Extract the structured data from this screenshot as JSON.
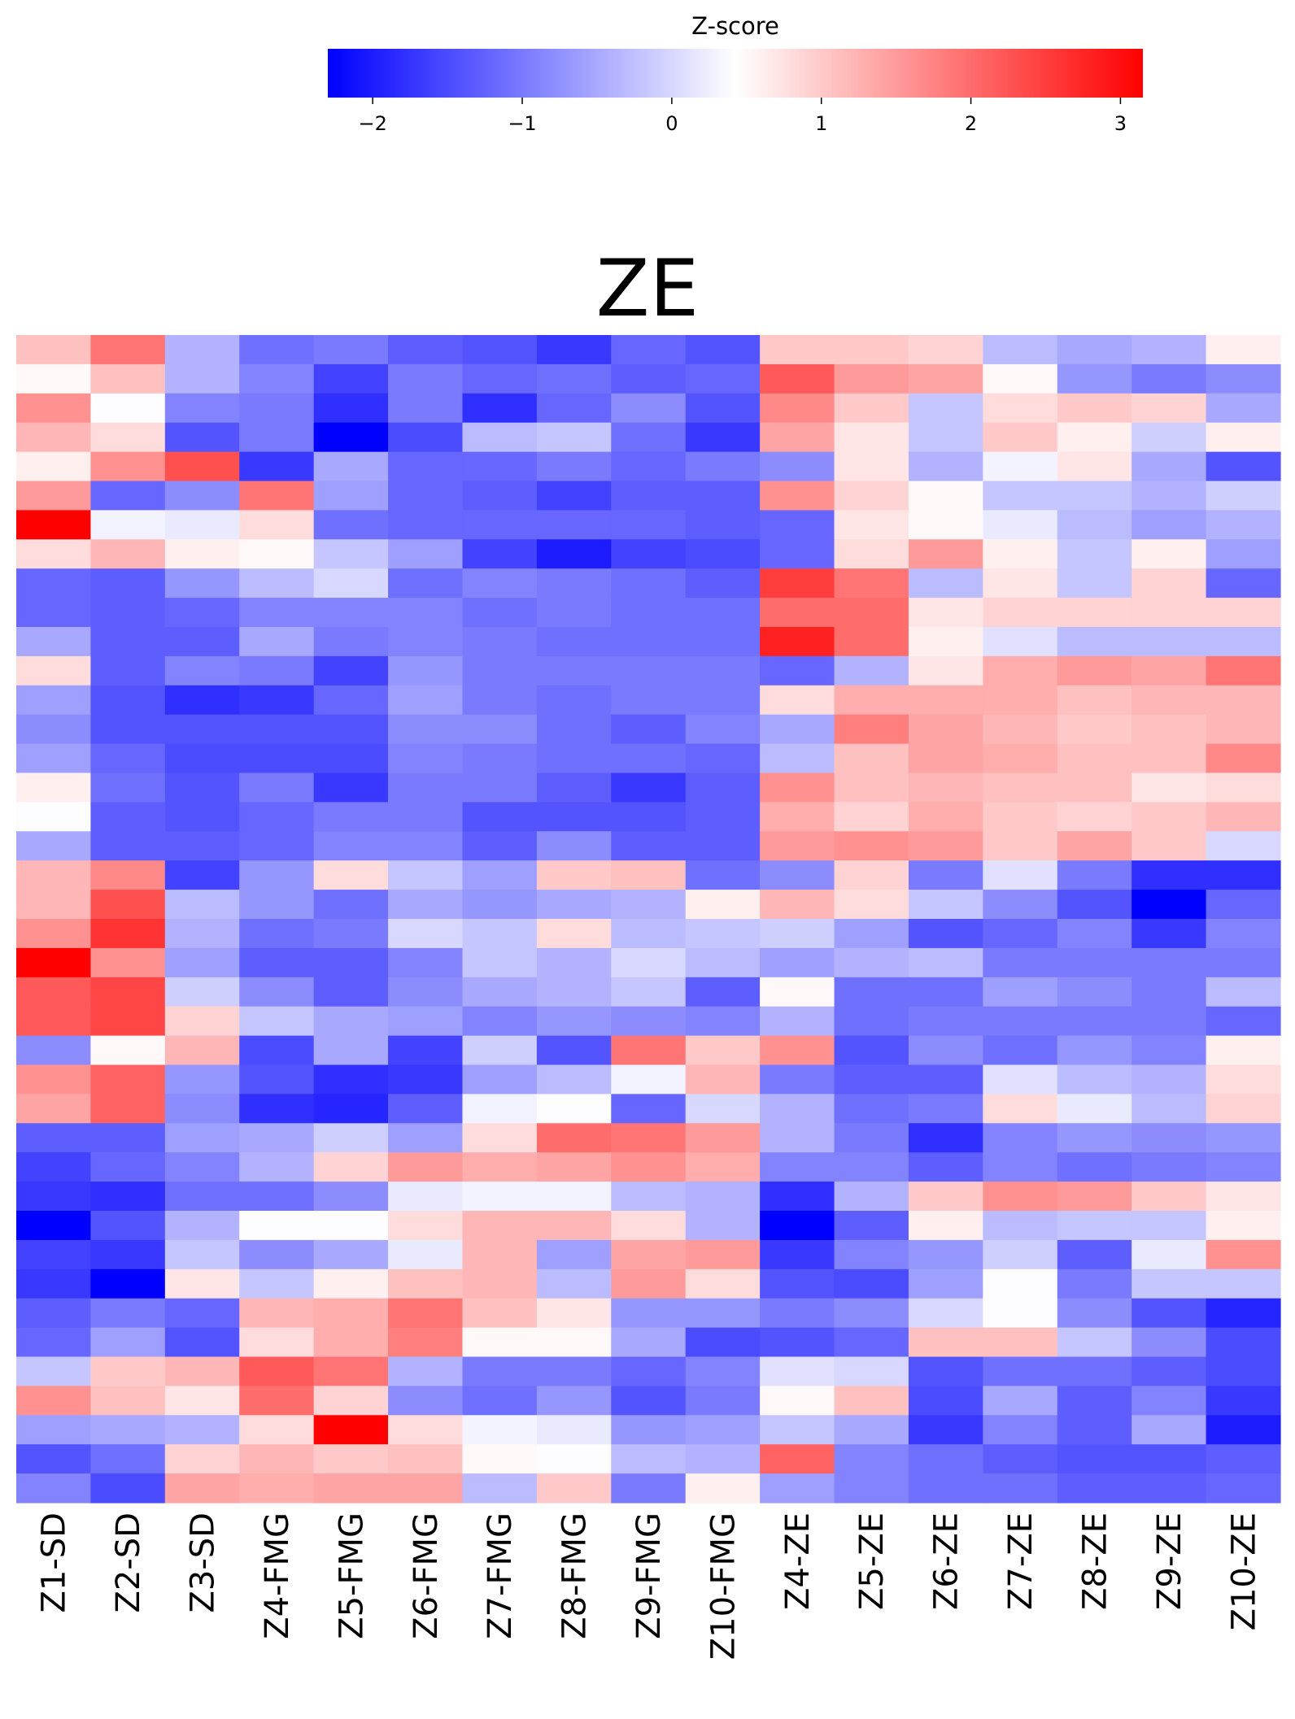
{
  "chart_data": {
    "type": "heatmap",
    "title": "ZE",
    "colorbar": {
      "label": "Z-score",
      "ticks": [
        -2,
        -1,
        0,
        1,
        2,
        3
      ],
      "tick_labels": [
        "−2",
        "−1",
        "0",
        "1",
        "2",
        "3"
      ],
      "range": [
        -2.3,
        3.15
      ],
      "colormap": "bwr",
      "colors": {
        "low": "#0000ff",
        "mid": "#ffffff",
        "high": "#ff0000"
      },
      "orientation": "horizontal",
      "position": "top"
    },
    "columns": [
      "Z1-SD",
      "Z2-SD",
      "Z3-SD",
      "Z4-FMG",
      "Z5-FMG",
      "Z6-FMG",
      "Z7-FMG",
      "Z8-FMG",
      "Z9-FMG",
      "Z10-FMG",
      "Z4-ZE",
      "Z5-ZE",
      "Z6-ZE",
      "Z7-ZE",
      "Z8-ZE",
      "Z9-ZE",
      "Z10-ZE"
    ],
    "row_count": 40,
    "values": [
      [
        1.1,
        1.9,
        -0.4,
        -1.1,
        -1.0,
        -1.3,
        -1.4,
        -1.7,
        -1.2,
        -1.4,
        1.0,
        1.0,
        0.9,
        -0.3,
        -0.5,
        -0.4,
        0.6
      ],
      [
        0.5,
        1.1,
        -0.4,
        -0.9,
        -1.6,
        -1.0,
        -1.2,
        -1.1,
        -1.3,
        -1.2,
        2.2,
        1.5,
        1.4,
        0.5,
        -0.7,
        -1.0,
        -0.8
      ],
      [
        1.6,
        0.4,
        -0.9,
        -1.0,
        -1.8,
        -1.0,
        -1.8,
        -1.2,
        -0.8,
        -1.4,
        1.7,
        1.0,
        -0.2,
        0.8,
        1.0,
        0.9,
        -0.5
      ],
      [
        1.2,
        0.8,
        -1.4,
        -1.0,
        -2.3,
        -1.5,
        -0.3,
        -0.2,
        -1.1,
        -1.7,
        1.4,
        0.7,
        -0.2,
        1.0,
        0.6,
        -0.1,
        0.6
      ],
      [
        0.6,
        1.6,
        2.3,
        -1.7,
        -0.5,
        -1.2,
        -1.2,
        -1.0,
        -1.2,
        -1.0,
        -0.8,
        0.7,
        -0.4,
        0.3,
        0.7,
        -0.5,
        -1.4
      ],
      [
        1.5,
        -1.2,
        -0.8,
        1.9,
        -0.6,
        -1.2,
        -1.3,
        -1.6,
        -1.3,
        -1.3,
        1.6,
        0.9,
        0.5,
        -0.2,
        -0.2,
        -0.4,
        -0.1
      ],
      [
        3.15,
        0.3,
        0.2,
        0.8,
        -1.1,
        -1.2,
        -1.2,
        -1.2,
        -1.2,
        -1.3,
        -1.2,
        0.7,
        0.5,
        0.2,
        -0.3,
        -0.6,
        -0.4
      ],
      [
        0.8,
        1.2,
        0.6,
        0.5,
        -0.2,
        -0.6,
        -1.6,
        -2.0,
        -1.6,
        -1.5,
        -1.2,
        0.8,
        1.5,
        0.6,
        -0.2,
        0.6,
        -0.6
      ],
      [
        -1.2,
        -1.3,
        -0.7,
        -0.3,
        0.0,
        -1.1,
        -0.9,
        -1.0,
        -1.1,
        -1.3,
        2.5,
        1.9,
        -0.3,
        0.7,
        -0.2,
        0.9,
        -1.2
      ],
      [
        -1.2,
        -1.3,
        -1.2,
        -0.9,
        -0.9,
        -0.9,
        -1.1,
        -1.0,
        -1.1,
        -1.1,
        2.0,
        2.0,
        0.7,
        0.9,
        0.9,
        0.9,
        0.9
      ],
      [
        -0.5,
        -1.3,
        -1.3,
        -0.5,
        -1.0,
        -0.9,
        -1.0,
        -1.1,
        -1.1,
        -1.1,
        2.8,
        2.0,
        0.6,
        0.1,
        -0.3,
        -0.3,
        -0.3
      ],
      [
        0.8,
        -1.3,
        -0.9,
        -1.0,
        -1.6,
        -0.7,
        -1.0,
        -1.0,
        -1.0,
        -1.0,
        -1.2,
        -0.4,
        0.7,
        1.3,
        1.5,
        1.4,
        1.9
      ],
      [
        -0.6,
        -1.4,
        -1.8,
        -1.7,
        -1.2,
        -0.6,
        -1.0,
        -1.1,
        -1.0,
        -1.0,
        0.8,
        1.3,
        1.3,
        1.3,
        1.1,
        1.2,
        1.2
      ],
      [
        -0.8,
        -1.4,
        -1.4,
        -1.4,
        -1.4,
        -0.8,
        -0.8,
        -1.1,
        -1.3,
        -0.9,
        -0.5,
        1.8,
        1.4,
        1.2,
        1.0,
        1.1,
        1.2
      ],
      [
        -0.6,
        -1.2,
        -1.5,
        -1.5,
        -1.5,
        -0.9,
        -1.0,
        -1.1,
        -1.1,
        -1.2,
        -0.3,
        1.1,
        1.4,
        1.3,
        1.1,
        1.1,
        1.7
      ],
      [
        0.6,
        -1.1,
        -1.4,
        -1.0,
        -1.7,
        -1.0,
        -1.0,
        -1.3,
        -1.7,
        -1.3,
        1.6,
        1.1,
        1.2,
        1.1,
        1.1,
        0.7,
        0.8
      ],
      [
        0.4,
        -1.3,
        -1.4,
        -1.2,
        -1.0,
        -1.0,
        -1.4,
        -1.4,
        -1.4,
        -1.3,
        1.3,
        0.9,
        1.3,
        1.0,
        0.9,
        1.0,
        1.2
      ],
      [
        -0.5,
        -1.3,
        -1.3,
        -1.2,
        -0.9,
        -0.9,
        -1.3,
        -0.8,
        -1.3,
        -1.3,
        1.5,
        1.6,
        1.5,
        1.0,
        1.4,
        1.0,
        0.0
      ],
      [
        1.2,
        1.7,
        -1.6,
        -0.7,
        0.8,
        -0.2,
        -0.6,
        1.0,
        1.1,
        -1.1,
        -0.8,
        0.9,
        -1.0,
        0.1,
        -1.0,
        -1.8,
        -1.8
      ],
      [
        1.2,
        2.3,
        -0.3,
        -0.7,
        -1.1,
        -0.5,
        -0.7,
        -0.5,
        -0.4,
        0.6,
        1.2,
        0.8,
        -0.2,
        -0.8,
        -1.4,
        -2.3,
        -1.2
      ],
      [
        1.6,
        2.6,
        -0.4,
        -1.1,
        -1.0,
        0.0,
        -0.2,
        0.8,
        -0.3,
        -0.2,
        -0.1,
        -0.6,
        -1.4,
        -1.2,
        -0.9,
        -1.7,
        -0.9
      ],
      [
        3.15,
        1.6,
        -0.6,
        -1.3,
        -1.3,
        -0.9,
        -0.2,
        -0.4,
        0.0,
        -0.3,
        -0.6,
        -0.4,
        -0.3,
        -1.0,
        -1.0,
        -1.0,
        -1.0
      ],
      [
        2.2,
        2.4,
        -0.1,
        -0.8,
        -1.3,
        -0.8,
        -0.5,
        -0.4,
        -0.2,
        -1.3,
        0.5,
        -1.1,
        -1.1,
        -0.6,
        -0.8,
        -1.0,
        -0.3
      ],
      [
        2.2,
        2.4,
        0.9,
        -0.2,
        -0.5,
        -0.6,
        -0.9,
        -0.7,
        -0.8,
        -0.9,
        -0.4,
        -1.1,
        -1.0,
        -1.0,
        -1.0,
        -1.0,
        -1.2
      ],
      [
        -0.8,
        0.5,
        1.2,
        -1.5,
        -0.5,
        -1.6,
        -0.1,
        -1.4,
        1.9,
        1.0,
        1.6,
        -1.4,
        -0.8,
        -1.1,
        -0.7,
        -0.9,
        0.6
      ],
      [
        1.6,
        2.1,
        -0.7,
        -1.4,
        -1.8,
        -1.7,
        -0.6,
        -0.3,
        0.3,
        1.2,
        -1.0,
        -1.3,
        -1.3,
        0.1,
        -0.3,
        -0.4,
        0.8
      ],
      [
        1.4,
        2.1,
        -0.8,
        -1.8,
        -1.9,
        -1.3,
        0.3,
        0.4,
        -1.2,
        0.0,
        -0.4,
        -1.1,
        -1.0,
        0.8,
        0.2,
        -0.3,
        0.9
      ],
      [
        -1.3,
        -1.3,
        -0.6,
        -0.5,
        -0.1,
        -0.6,
        0.8,
        2.0,
        1.9,
        1.5,
        -0.4,
        -1.0,
        -1.8,
        -0.9,
        -0.7,
        -0.8,
        -0.7
      ],
      [
        -1.6,
        -1.2,
        -0.9,
        -0.4,
        0.9,
        1.5,
        1.3,
        1.4,
        1.6,
        1.3,
        -0.9,
        -0.9,
        -1.3,
        -0.9,
        -1.1,
        -1.0,
        -0.9
      ],
      [
        -1.7,
        -1.8,
        -1.1,
        -1.1,
        -0.8,
        0.2,
        0.3,
        0.3,
        -0.3,
        -0.4,
        -1.8,
        -0.4,
        1.0,
        1.6,
        1.5,
        1.0,
        0.7
      ],
      [
        -2.3,
        -1.4,
        -0.4,
        0.4,
        0.4,
        0.8,
        1.2,
        1.2,
        0.8,
        -0.4,
        -2.3,
        -1.3,
        0.6,
        -0.3,
        -0.2,
        -0.2,
        0.6
      ],
      [
        -1.6,
        -1.7,
        -0.2,
        -0.8,
        -0.5,
        0.2,
        1.2,
        -0.6,
        1.4,
        1.5,
        -1.7,
        -0.9,
        -0.7,
        -0.1,
        -1.3,
        0.2,
        1.6
      ],
      [
        -1.7,
        -2.3,
        0.7,
        -0.2,
        0.6,
        1.1,
        1.2,
        -0.3,
        1.5,
        0.8,
        -1.4,
        -1.5,
        -0.6,
        0.4,
        -1.0,
        -0.2,
        -0.2
      ],
      [
        -1.3,
        -1.0,
        -1.2,
        1.2,
        1.3,
        1.9,
        1.1,
        0.7,
        -0.7,
        -0.7,
        -1.0,
        -0.8,
        0.0,
        0.4,
        -0.8,
        -1.4,
        -1.9
      ],
      [
        -1.2,
        -0.6,
        -1.4,
        0.8,
        1.3,
        1.8,
        0.5,
        0.5,
        -0.5,
        -1.5,
        -1.4,
        -1.2,
        1.1,
        1.1,
        -0.2,
        -0.8,
        -1.5
      ],
      [
        -0.2,
        1.0,
        1.2,
        2.2,
        1.9,
        -0.4,
        -1.0,
        -1.0,
        -1.2,
        -0.9,
        0.1,
        0.0,
        -1.4,
        -1.1,
        -1.1,
        -1.3,
        -1.5
      ],
      [
        1.6,
        1.1,
        0.7,
        2.0,
        0.9,
        -0.8,
        -1.1,
        -0.7,
        -1.4,
        -1.0,
        0.5,
        1.1,
        -1.5,
        -0.5,
        -1.3,
        -0.9,
        -1.7
      ],
      [
        -0.6,
        -0.5,
        -0.4,
        0.8,
        3.15,
        0.8,
        0.3,
        0.2,
        -0.7,
        -0.6,
        -0.2,
        -0.5,
        -1.7,
        -0.9,
        -1.3,
        -0.5,
        -2.0
      ],
      [
        -1.4,
        -1.1,
        0.9,
        1.2,
        1.0,
        1.1,
        0.5,
        0.4,
        -0.3,
        -0.4,
        2.1,
        -0.9,
        -1.1,
        -1.3,
        -1.4,
        -1.4,
        -1.3
      ],
      [
        -0.9,
        -1.5,
        1.4,
        1.3,
        1.4,
        1.4,
        -0.3,
        1.0,
        -1.0,
        0.6,
        -0.6,
        -0.9,
        -1.1,
        -1.1,
        -1.3,
        -1.3,
        -1.2
      ]
    ]
  }
}
